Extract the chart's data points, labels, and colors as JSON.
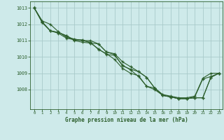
{
  "title": "Graphe pression niveau de la mer (hPa)",
  "xlim": [
    -0.5,
    23.5
  ],
  "ylim": [
    1006.8,
    1013.4
  ],
  "yticks": [
    1008,
    1009,
    1010,
    1011,
    1012,
    1013
  ],
  "xticks": [
    0,
    1,
    2,
    3,
    4,
    5,
    6,
    7,
    8,
    9,
    10,
    11,
    12,
    13,
    14,
    15,
    16,
    17,
    18,
    19,
    20,
    21,
    22,
    23
  ],
  "bg_color": "#ceeaea",
  "grid_color_major": "#aacaca",
  "grid_color_minor": "#bddada",
  "line_color": "#2d5f2d",
  "series": [
    [
      1013.0,
      1012.2,
      1012.0,
      1011.55,
      1011.2,
      1011.1,
      1011.0,
      1010.9,
      1010.45,
      1010.2,
      1009.85,
      1009.3,
      1009.0,
      1008.85,
      1008.2,
      1008.1,
      1007.7,
      1007.6,
      1007.5,
      1007.5,
      1007.6,
      1008.7,
      1009.0,
      1009.0
    ],
    [
      1013.0,
      1012.15,
      1011.6,
      1011.45,
      1011.15,
      1011.05,
      1011.05,
      1010.85,
      1010.5,
      1010.15,
      1010.1,
      1009.5,
      1009.2,
      1008.8,
      1008.2,
      1008.0,
      1007.65,
      1007.55,
      1007.45,
      1007.45,
      1007.55,
      1008.65,
      1008.8,
      1009.0
    ],
    [
      1013.0,
      1012.1,
      1011.6,
      1011.5,
      1011.3,
      1011.05,
      1011.0,
      1011.0,
      1010.8,
      1010.3,
      1010.2,
      1009.7,
      1009.4,
      1009.1,
      1008.75,
      1008.1,
      1007.65,
      1007.55,
      1007.45,
      1007.45,
      1007.5,
      1007.5,
      1008.75,
      1009.0
    ],
    [
      1013.0,
      1012.1,
      1011.6,
      1011.5,
      1011.3,
      1011.0,
      1010.9,
      1010.85,
      1010.8,
      1010.3,
      1010.15,
      1009.45,
      1009.25,
      1009.1,
      1008.75,
      1008.1,
      1007.65,
      1007.55,
      1007.45,
      1007.45,
      1007.5,
      1007.5,
      1008.75,
      1009.0
    ]
  ],
  "figsize": [
    3.2,
    2.0
  ],
  "dpi": 100
}
